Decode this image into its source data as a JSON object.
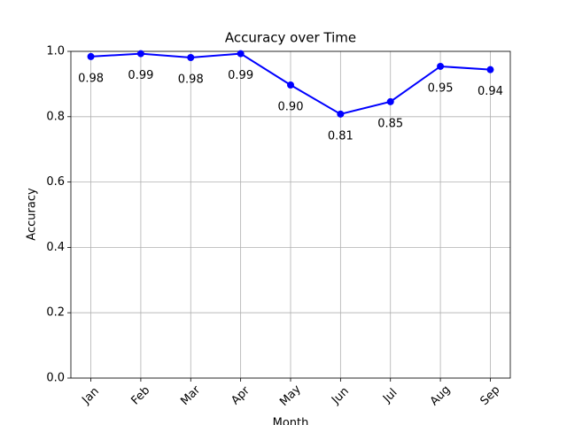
{
  "chart_data": {
    "type": "line",
    "title": "Accuracy over Time",
    "x_label": "Month",
    "y_label": "Accuracy",
    "categories": [
      "Jan",
      "Feb",
      "Mar",
      "Apr",
      "May",
      "Jun",
      "Jul",
      "Aug",
      "Sep"
    ],
    "values": [
      0.984,
      0.993,
      0.981,
      0.993,
      0.897,
      0.808,
      0.846,
      0.954,
      0.944
    ],
    "value_labels": [
      "0.98",
      "0.99",
      "0.98",
      "0.99",
      "0.90",
      "0.81",
      "0.85",
      "0.95",
      "0.94"
    ],
    "color": "#0000ff",
    "ylim": [
      0,
      1
    ],
    "yticks": [
      {
        "value": 0,
        "label": "0.0"
      },
      0.2,
      0.4,
      0.6,
      0.8,
      {
        "value": 1,
        "label": "1.0"
      }
    ],
    "grid": true
  }
}
